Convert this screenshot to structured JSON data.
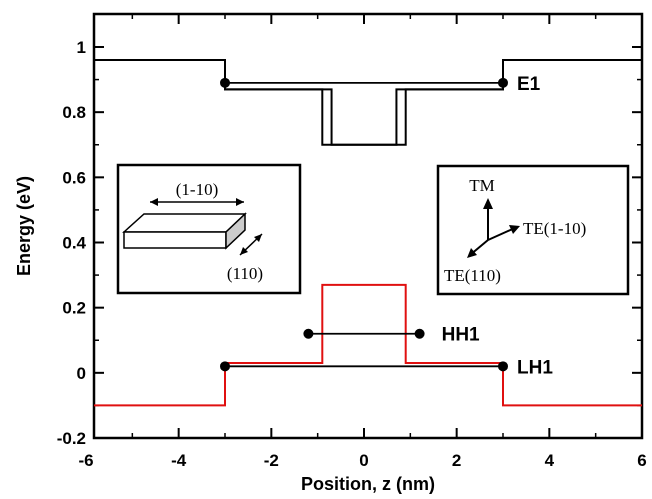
{
  "chart_data": {
    "type": "line",
    "xlabel": "Position, z (nm)",
    "ylabel": "Energy (eV)",
    "xlim": [
      -6,
      6
    ],
    "ylim": [
      -0.2,
      1.1
    ],
    "xticks": [
      {
        "value": -6,
        "label": "-6"
      },
      {
        "value": -4,
        "label": "-4"
      },
      {
        "value": -2,
        "label": "-2"
      },
      {
        "value": 0,
        "label": "0"
      },
      {
        "value": 2,
        "label": "2"
      },
      {
        "value": 4,
        "label": "4"
      },
      {
        "value": 6,
        "label": "6"
      }
    ],
    "yticks": [
      {
        "value": -0.2,
        "label": "-0.2"
      },
      {
        "value": 0,
        "label": "0"
      },
      {
        "value": 0.2,
        "label": "0.2"
      },
      {
        "value": 0.4,
        "label": "0.4"
      },
      {
        "value": 0.6,
        "label": "0.6"
      },
      {
        "value": 0.8,
        "label": "0.8"
      },
      {
        "value": 1,
        "label": "1"
      }
    ],
    "series": [
      {
        "color": "#000000",
        "x": [
          -6,
          -3,
          -3,
          -0.9,
          -0.9,
          -0.9,
          -0.9,
          -0.9,
          -0.9,
          0.9,
          0.9,
          0.9,
          3,
          3,
          6
        ],
        "y": [
          0.96,
          0.96,
          0.87,
          0.87,
          0.87,
          0.87,
          0.87,
          0.87,
          0.7,
          0.7,
          0.87,
          0.87,
          0.87,
          0.96,
          0.96
        ]
      },
      {
        "color": "#000000",
        "x": [
          -6,
          -3,
          -3,
          -0.9,
          -0.9,
          -0.7,
          -0.7,
          0.7,
          0.7,
          0.9,
          0.9,
          3,
          3,
          6
        ],
        "y": [
          0.96,
          0.96,
          0.87,
          0.87,
          0.87,
          0.87,
          0.7,
          0.7,
          0.87,
          0.87,
          0.87,
          0.87,
          0.96,
          0.96
        ]
      },
      {
        "color": "#e01010",
        "x": [
          -6,
          -3,
          -3,
          -0.9,
          -0.9,
          0.9,
          0.9,
          3,
          3,
          6
        ],
        "y": [
          -0.1,
          -0.1,
          0.03,
          0.03,
          0.27,
          0.27,
          0.03,
          0.03,
          -0.1,
          -0.1
        ]
      }
    ],
    "levels": [
      {
        "label": "E1",
        "y": 0.89,
        "x_start": -3,
        "x_end": 3,
        "dots": true
      },
      {
        "label": "HH1",
        "y": 0.12,
        "x_start": -1.2,
        "x_end": 1.2,
        "dots": true
      },
      {
        "label": "LH1",
        "y": 0.02,
        "x_start": -3,
        "x_end": 3,
        "dots": true
      }
    ],
    "insets": {
      "left": {
        "dim1": "(1-10)",
        "dim2": "(110)"
      },
      "right": {
        "tm": "TM",
        "te1": "TE(1-10)",
        "te2": "TE(110)"
      }
    }
  }
}
